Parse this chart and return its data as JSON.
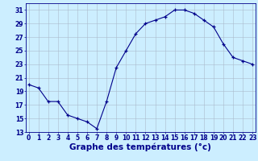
{
  "hours": [
    0,
    1,
    2,
    3,
    4,
    5,
    6,
    7,
    8,
    9,
    10,
    11,
    12,
    13,
    14,
    15,
    16,
    17,
    18,
    19,
    20,
    21,
    22,
    23
  ],
  "temps": [
    20.0,
    19.5,
    17.5,
    17.5,
    15.5,
    15.0,
    14.5,
    13.5,
    17.5,
    22.5,
    25.0,
    27.5,
    29.0,
    29.5,
    30.0,
    31.0,
    31.0,
    30.5,
    29.5,
    28.5,
    26.0,
    24.0,
    23.5,
    23.0
  ],
  "line_color": "#00008b",
  "bg_color": "#cceeff",
  "grid_color": "#aabbcc",
  "xlabel": "Graphe des températures (°c)",
  "ylim": [
    13,
    32
  ],
  "yticks": [
    13,
    15,
    17,
    19,
    21,
    23,
    25,
    27,
    29,
    31
  ],
  "xlim": [
    -0.3,
    23.3
  ],
  "xticks": [
    0,
    1,
    2,
    3,
    4,
    5,
    6,
    7,
    8,
    9,
    10,
    11,
    12,
    13,
    14,
    15,
    16,
    17,
    18,
    19,
    20,
    21,
    22,
    23
  ],
  "tick_fontsize": 5.5,
  "xlabel_fontsize": 7.5
}
